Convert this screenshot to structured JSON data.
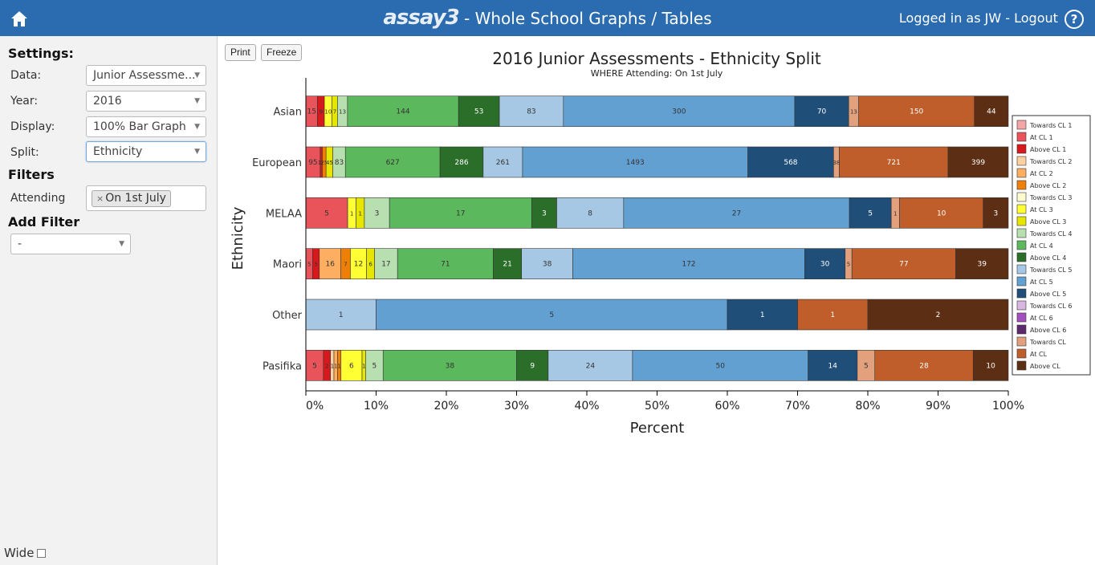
{
  "header": {
    "brand": "assay3",
    "title": " - Whole School Graphs / Tables",
    "login_text": "Logged in as JW - Logout",
    "help": "?"
  },
  "sidebar": {
    "settings_heading": "Settings:",
    "data_label": "Data:",
    "data_value": "Junior Assessme...",
    "year_label": "Year:",
    "year_value": "2016",
    "display_label": "Display:",
    "display_value": "100% Bar Graph",
    "split_label": "Split:",
    "split_value": "Ethnicity",
    "filters_heading": "Filters",
    "attending_label": "Attending",
    "attending_tag": "On 1st July",
    "add_filter_heading": "Add Filter",
    "add_filter_value": "-",
    "wide_label": "Wide"
  },
  "toolbar": {
    "print_label": "Print",
    "freeze_label": "Freeze"
  },
  "chart_data": {
    "type": "bar",
    "orientation": "horizontal",
    "stacked": "100%",
    "title": "2016 Junior Assessments - Ethnicity Split",
    "subtitle": "WHERE Attending: On 1st July",
    "xlabel": "Percent",
    "ylabel": "Ethnicity",
    "xlim": [
      0,
      100
    ],
    "xticks": [
      "0%",
      "10%",
      "20%",
      "30%",
      "40%",
      "50%",
      "60%",
      "70%",
      "80%",
      "90%",
      "100%"
    ],
    "legend_position": "right",
    "categories": [
      "Asian",
      "European",
      "MELAA",
      "Maori",
      "Other",
      "Pasifika"
    ],
    "series": [
      {
        "name": "Towards CL 1",
        "color": "#f4a6a6",
        "values": [
          0,
          0,
          0,
          0,
          0,
          0
        ]
      },
      {
        "name": "At CL 1",
        "color": "#e8545a",
        "values": [
          15,
          95,
          5,
          5,
          0,
          5
        ]
      },
      {
        "name": "Above CL 1",
        "color": "#d7191c",
        "values": [
          9,
          14,
          0,
          5,
          0,
          2
        ]
      },
      {
        "name": "Towards CL 2",
        "color": "#fdd0a2",
        "values": [
          0,
          0,
          0,
          0,
          0,
          1
        ]
      },
      {
        "name": "At CL 2",
        "color": "#fdae61",
        "values": [
          0,
          0,
          0,
          16,
          0,
          1
        ]
      },
      {
        "name": "Above CL 2",
        "color": "#f07f08",
        "values": [
          0,
          25,
          0,
          7,
          0,
          1
        ]
      },
      {
        "name": "Towards CL 3",
        "color": "#fffbd0",
        "values": [
          0,
          0,
          0,
          0,
          0,
          0
        ]
      },
      {
        "name": "At CL 3",
        "color": "#ffff33",
        "values": [
          10,
          0,
          1,
          12,
          0,
          6
        ]
      },
      {
        "name": "Above CL 3",
        "color": "#e6e600",
        "values": [
          7,
          45,
          1,
          6,
          0,
          1
        ]
      },
      {
        "name": "Towards CL 4",
        "color": "#b8dfb0",
        "values": [
          13,
          83,
          3,
          17,
          0,
          5
        ]
      },
      {
        "name": "At CL 4",
        "color": "#5cb85c",
        "values": [
          144,
          627,
          17,
          71,
          0,
          38
        ]
      },
      {
        "name": "Above CL 4",
        "color": "#2a6e2a",
        "values": [
          53,
          286,
          3,
          21,
          0,
          9
        ]
      },
      {
        "name": "Towards CL 5",
        "color": "#a6c8e5",
        "values": [
          83,
          261,
          8,
          38,
          1,
          24
        ]
      },
      {
        "name": "At CL 5",
        "color": "#63a0d2",
        "values": [
          300,
          1493,
          27,
          172,
          5,
          50
        ]
      },
      {
        "name": "Above CL 5",
        "color": "#1f4e79",
        "values": [
          70,
          568,
          5,
          30,
          1,
          14
        ]
      },
      {
        "name": "Towards CL 6",
        "color": "#d8b6e0",
        "values": [
          0,
          0,
          0,
          0,
          0,
          0
        ]
      },
      {
        "name": "At CL 6",
        "color": "#a44fbf",
        "values": [
          0,
          0,
          0,
          0,
          0,
          0
        ]
      },
      {
        "name": "Above CL 6",
        "color": "#5e2a6e",
        "values": [
          0,
          0,
          0,
          0,
          0,
          0
        ]
      },
      {
        "name": "Towards CL",
        "color": "#e3a07c",
        "values": [
          13,
          38,
          1,
          5,
          0,
          5
        ]
      },
      {
        "name": "At CL",
        "color": "#bf5e2a",
        "values": [
          150,
          721,
          10,
          77,
          1,
          28
        ]
      },
      {
        "name": "Above CL",
        "color": "#5c2e14",
        "values": [
          44,
          399,
          3,
          39,
          2,
          10
        ]
      }
    ]
  }
}
